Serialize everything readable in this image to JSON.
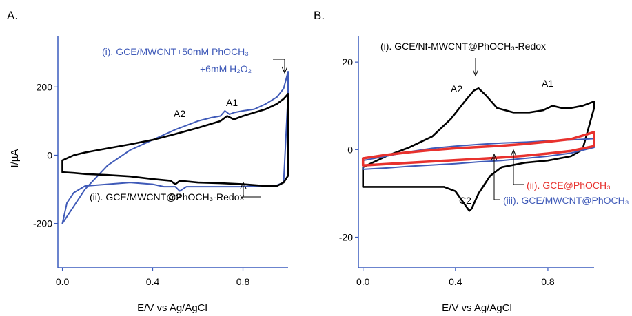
{
  "chart_data": [
    {
      "type": "line",
      "panel_label": "A.",
      "xlabel": "E/V vs Ag/AgCl",
      "ylabel": "I/µA",
      "xlim": [
        -0.02,
        1.0
      ],
      "ylim": [
        -330,
        350
      ],
      "x_ticks": [
        0.0,
        0.4,
        0.8
      ],
      "x_tick_labels": [
        "0.0",
        "0.4",
        "0.8"
      ],
      "y_ticks": [
        -200,
        0,
        200
      ],
      "y_tick_labels": [
        "-200",
        "0",
        "200"
      ],
      "grid": false,
      "legend": "none",
      "colors": {
        "axis": "#3a5bbd",
        "blue": "#3f5ab8",
        "black": "#000000"
      },
      "series": [
        {
          "color": "#3f5ab8",
          "closed": true,
          "x": [
            0.0,
            0.05,
            0.1,
            0.2,
            0.3,
            0.4,
            0.5,
            0.6,
            0.63,
            0.66,
            0.7,
            0.72,
            0.74,
            0.76,
            0.8,
            0.85,
            0.9,
            0.95,
            0.98,
            1.0,
            1.0,
            0.98,
            0.95,
            0.9,
            0.85,
            0.8,
            0.7,
            0.6,
            0.55,
            0.52,
            0.5,
            0.45,
            0.4,
            0.3,
            0.2,
            0.1,
            0.05,
            0.02,
            0.0
          ],
          "y": [
            -200,
            -150,
            -100,
            -30,
            15,
            45,
            75,
            100,
            105,
            110,
            115,
            130,
            120,
            125,
            130,
            135,
            150,
            170,
            195,
            245,
            180,
            -80,
            -88,
            -90,
            -90,
            -92,
            -92,
            -92,
            -92,
            -105,
            -92,
            -92,
            -85,
            -80,
            -85,
            -90,
            -110,
            -140,
            -200
          ]
        },
        {
          "color": "#000000",
          "closed": true,
          "x": [
            0.0,
            0.05,
            0.1,
            0.2,
            0.3,
            0.4,
            0.5,
            0.6,
            0.7,
            0.73,
            0.76,
            0.8,
            0.85,
            0.9,
            0.95,
            0.98,
            1.0,
            1.0,
            0.98,
            0.95,
            0.9,
            0.8,
            0.7,
            0.6,
            0.52,
            0.5,
            0.48,
            0.4,
            0.3,
            0.2,
            0.1,
            0.05,
            0.0
          ],
          "y": [
            -15,
            0,
            8,
            20,
            32,
            45,
            62,
            80,
            100,
            115,
            105,
            115,
            125,
            135,
            150,
            165,
            180,
            -60,
            -80,
            -90,
            -90,
            -85,
            -82,
            -80,
            -75,
            -85,
            -75,
            -70,
            -62,
            -58,
            -55,
            -52,
            -50
          ]
        }
      ],
      "annotations": [
        {
          "text": "(i). GCE/MWCNT+50mM PhOCH₃",
          "color": "#3f5ab8"
        },
        {
          "text": "+6mM H₂O₂",
          "color": "#3f5ab8"
        },
        {
          "text": "A2",
          "color": "#000000"
        },
        {
          "text": "A1",
          "color": "#000000"
        },
        {
          "text": "C2",
          "color": "#000000"
        },
        {
          "text": "(ii). GCE/MWCNT@PhOCH₃-Redox",
          "color": "#000000"
        }
      ]
    },
    {
      "type": "line",
      "panel_label": "B.",
      "xlabel": "E/V vs Ag/AgCl",
      "ylabel": "",
      "xlim": [
        -0.02,
        1.0
      ],
      "ylim": [
        -27,
        26
      ],
      "x_ticks": [
        0.0,
        0.4,
        0.8
      ],
      "x_tick_labels": [
        "0.0",
        "0.4",
        "0.8"
      ],
      "y_ticks": [
        -20,
        0,
        20
      ],
      "y_tick_labels": [
        "-20",
        "0",
        "20"
      ],
      "grid": false,
      "legend": "none",
      "colors": {
        "axis": "#3a5bbd",
        "black": "#000000",
        "red": "#e8322e",
        "blue": "#3f5ab8"
      },
      "series": [
        {
          "color": "#000000",
          "closed": true,
          "x": [
            0.0,
            0.1,
            0.2,
            0.3,
            0.38,
            0.44,
            0.48,
            0.5,
            0.53,
            0.58,
            0.65,
            0.72,
            0.78,
            0.82,
            0.86,
            0.9,
            0.95,
            1.0,
            1.0,
            0.95,
            0.9,
            0.8,
            0.7,
            0.6,
            0.55,
            0.5,
            0.47,
            0.46,
            0.44,
            0.4,
            0.35,
            0.3,
            0.2,
            0.1,
            0.0
          ],
          "y": [
            -4,
            -1.5,
            0.5,
            3,
            7,
            11,
            13.5,
            14,
            12.5,
            9.5,
            8.5,
            8.5,
            9,
            10,
            9.5,
            9.5,
            10,
            11,
            9.5,
            0,
            -1.5,
            -2.5,
            -3,
            -4,
            -6,
            -10,
            -13.5,
            -14,
            -12.5,
            -9.5,
            -8.5,
            -8.5,
            -8.5,
            -8.5,
            -8.5
          ]
        },
        {
          "color": "#3f5ab8",
          "closed": true,
          "x": [
            0.0,
            0.1,
            0.2,
            0.3,
            0.4,
            0.5,
            0.6,
            0.7,
            0.8,
            0.9,
            1.0,
            1.0,
            0.9,
            0.8,
            0.7,
            0.6,
            0.5,
            0.4,
            0.3,
            0.2,
            0.1,
            0.0
          ],
          "y": [
            -2.5,
            -1.5,
            -0.5,
            0.3,
            0.8,
            1.2,
            1.5,
            1.7,
            2.0,
            2.2,
            2.5,
            0.5,
            -0.8,
            -1.5,
            -2.0,
            -2.5,
            -2.8,
            -3.2,
            -3.5,
            -3.8,
            -4.2,
            -4.5
          ]
        },
        {
          "color": "#e8322e",
          "closed": true,
          "x": [
            0.0,
            0.1,
            0.2,
            0.3,
            0.4,
            0.5,
            0.6,
            0.7,
            0.8,
            0.9,
            1.0,
            1.0,
            0.9,
            0.8,
            0.7,
            0.6,
            0.5,
            0.4,
            0.3,
            0.2,
            0.1,
            0.0
          ],
          "y": [
            -2.0,
            -1.2,
            -0.6,
            -0.1,
            0.3,
            0.6,
            0.9,
            1.3,
            1.8,
            2.4,
            4.0,
            0.8,
            -0.3,
            -0.9,
            -1.4,
            -1.8,
            -2.1,
            -2.4,
            -2.7,
            -3.0,
            -3.3,
            -3.6
          ]
        }
      ],
      "annotations": [
        {
          "text": "(i). GCE/Nf-MWCNT@PhOCH₃-Redox",
          "color": "#000000"
        },
        {
          "text": "A2",
          "color": "#000000"
        },
        {
          "text": "A1",
          "color": "#000000"
        },
        {
          "text": "C2",
          "color": "#000000"
        },
        {
          "text": "(ii). GCE@PhOCH₃",
          "color": "#e8322e"
        },
        {
          "text": "(iii). GCE/MWCNT@PhOCH₃",
          "color": "#3f5ab8"
        }
      ]
    }
  ]
}
